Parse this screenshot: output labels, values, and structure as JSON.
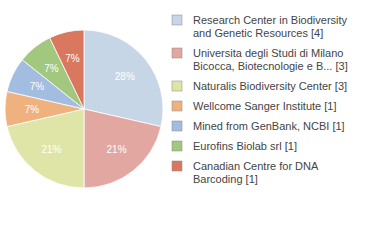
{
  "chart_data": {
    "type": "pie",
    "categories": [
      "Research Center in Biodiversity and Genetic Resources [4]",
      "Universita degli Studi di Milano Bicocca, Biotecnologie e B... [3]",
      "Naturalis Biodiversity Center [3]",
      "Wellcome Sanger Institute [1]",
      "Mined from GenBank, NCBI [1]",
      "Eurofins Biolab srl [1]",
      "Canadian Centre for DNA Barcoding [1]"
    ],
    "values": [
      28,
      21,
      21,
      7,
      7,
      7,
      7
    ],
    "value_labels": [
      "28%",
      "21%",
      "21%",
      "7%",
      "7%",
      "7%",
      "7%"
    ],
    "colors": [
      "#c7d6e6",
      "#e3a7a2",
      "#dfe5a6",
      "#efb27e",
      "#a3bde0",
      "#a2c77e",
      "#d9785f"
    ],
    "data_labels": true,
    "legend": "right"
  }
}
